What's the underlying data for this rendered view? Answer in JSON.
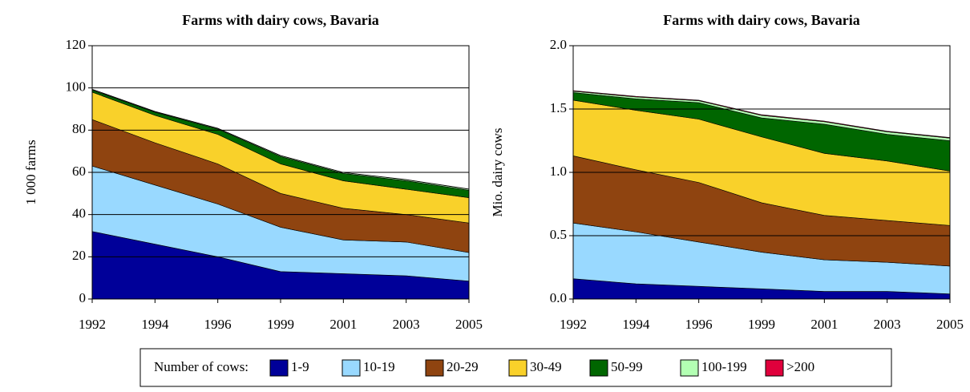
{
  "chart_data": [
    {
      "type": "stacked_area",
      "title": "Farms with dairy cows, Bavaria",
      "y_label": "1 000 farms",
      "legend_title": "Number of cows:",
      "categories": [
        "1992",
        "1994",
        "1996",
        "1999",
        "2001",
        "2003",
        "2005"
      ],
      "ylim": [
        0,
        120
      ],
      "yticks": [
        0,
        20,
        40,
        60,
        80,
        100,
        120
      ],
      "grid": true,
      "series": [
        {
          "name": "1-9",
          "color": "#000099",
          "values": [
            32,
            26,
            20,
            13,
            12,
            11,
            8.5
          ]
        },
        {
          "name": "10-19",
          "color": "#99d9ff",
          "values": [
            31,
            28,
            25,
            21,
            16,
            16,
            13.5
          ]
        },
        {
          "name": "20-29",
          "color": "#8f4410",
          "values": [
            22,
            20,
            19,
            16,
            15,
            13,
            14
          ]
        },
        {
          "name": "30-49",
          "color": "#f9d12a",
          "values": [
            13,
            13,
            14,
            14,
            13,
            12,
            12
          ]
        },
        {
          "name": "50-99",
          "color": "#006600",
          "values": [
            1,
            1.5,
            2.5,
            3.5,
            3.5,
            4,
            3.5
          ]
        },
        {
          "name": "100-199",
          "color": "#b3ffb3",
          "values": [
            0.3,
            0.3,
            0.3,
            0.4,
            0.4,
            0.5,
            0.5
          ]
        },
        {
          "name": ">200",
          "color": "#e0003c",
          "values": [
            0.1,
            0.1,
            0.1,
            0.1,
            0.1,
            0.1,
            0.1
          ]
        }
      ]
    },
    {
      "type": "stacked_area",
      "title": "Farms with dairy cows, Bavaria",
      "y_label": "Mio. dairy cows",
      "categories": [
        "1992",
        "1994",
        "1996",
        "1999",
        "2001",
        "2003",
        "2005"
      ],
      "ylim": [
        0,
        2
      ],
      "yticks": [
        {
          "value": 0,
          "label": "0.0"
        },
        0.5,
        {
          "value": 1,
          "label": "1.0"
        },
        1.5,
        {
          "value": 2,
          "label": "2.0"
        }
      ],
      "grid": true,
      "series": [
        {
          "color": "#000099",
          "values": [
            0.16,
            0.12,
            0.1,
            0.08,
            0.06,
            0.06,
            0.04
          ]
        },
        {
          "color": "#99d9ff",
          "values": [
            0.44,
            0.41,
            0.35,
            0.29,
            0.25,
            0.23,
            0.22
          ]
        },
        {
          "color": "#8f4410",
          "values": [
            0.53,
            0.49,
            0.47,
            0.39,
            0.35,
            0.33,
            0.32
          ]
        },
        {
          "color": "#f9d12a",
          "values": [
            0.44,
            0.47,
            0.5,
            0.52,
            0.49,
            0.47,
            0.43
          ]
        },
        {
          "color": "#006600",
          "values": [
            0.06,
            0.09,
            0.13,
            0.15,
            0.23,
            0.21,
            0.24
          ]
        },
        {
          "color": "#b3ffb3",
          "values": [
            0.01,
            0.015,
            0.015,
            0.02,
            0.02,
            0.02,
            0.02
          ]
        },
        {
          "color": "#e0003c",
          "values": [
            0.005,
            0.005,
            0.005,
            0.005,
            0.005,
            0.005,
            0.005
          ]
        }
      ]
    }
  ]
}
